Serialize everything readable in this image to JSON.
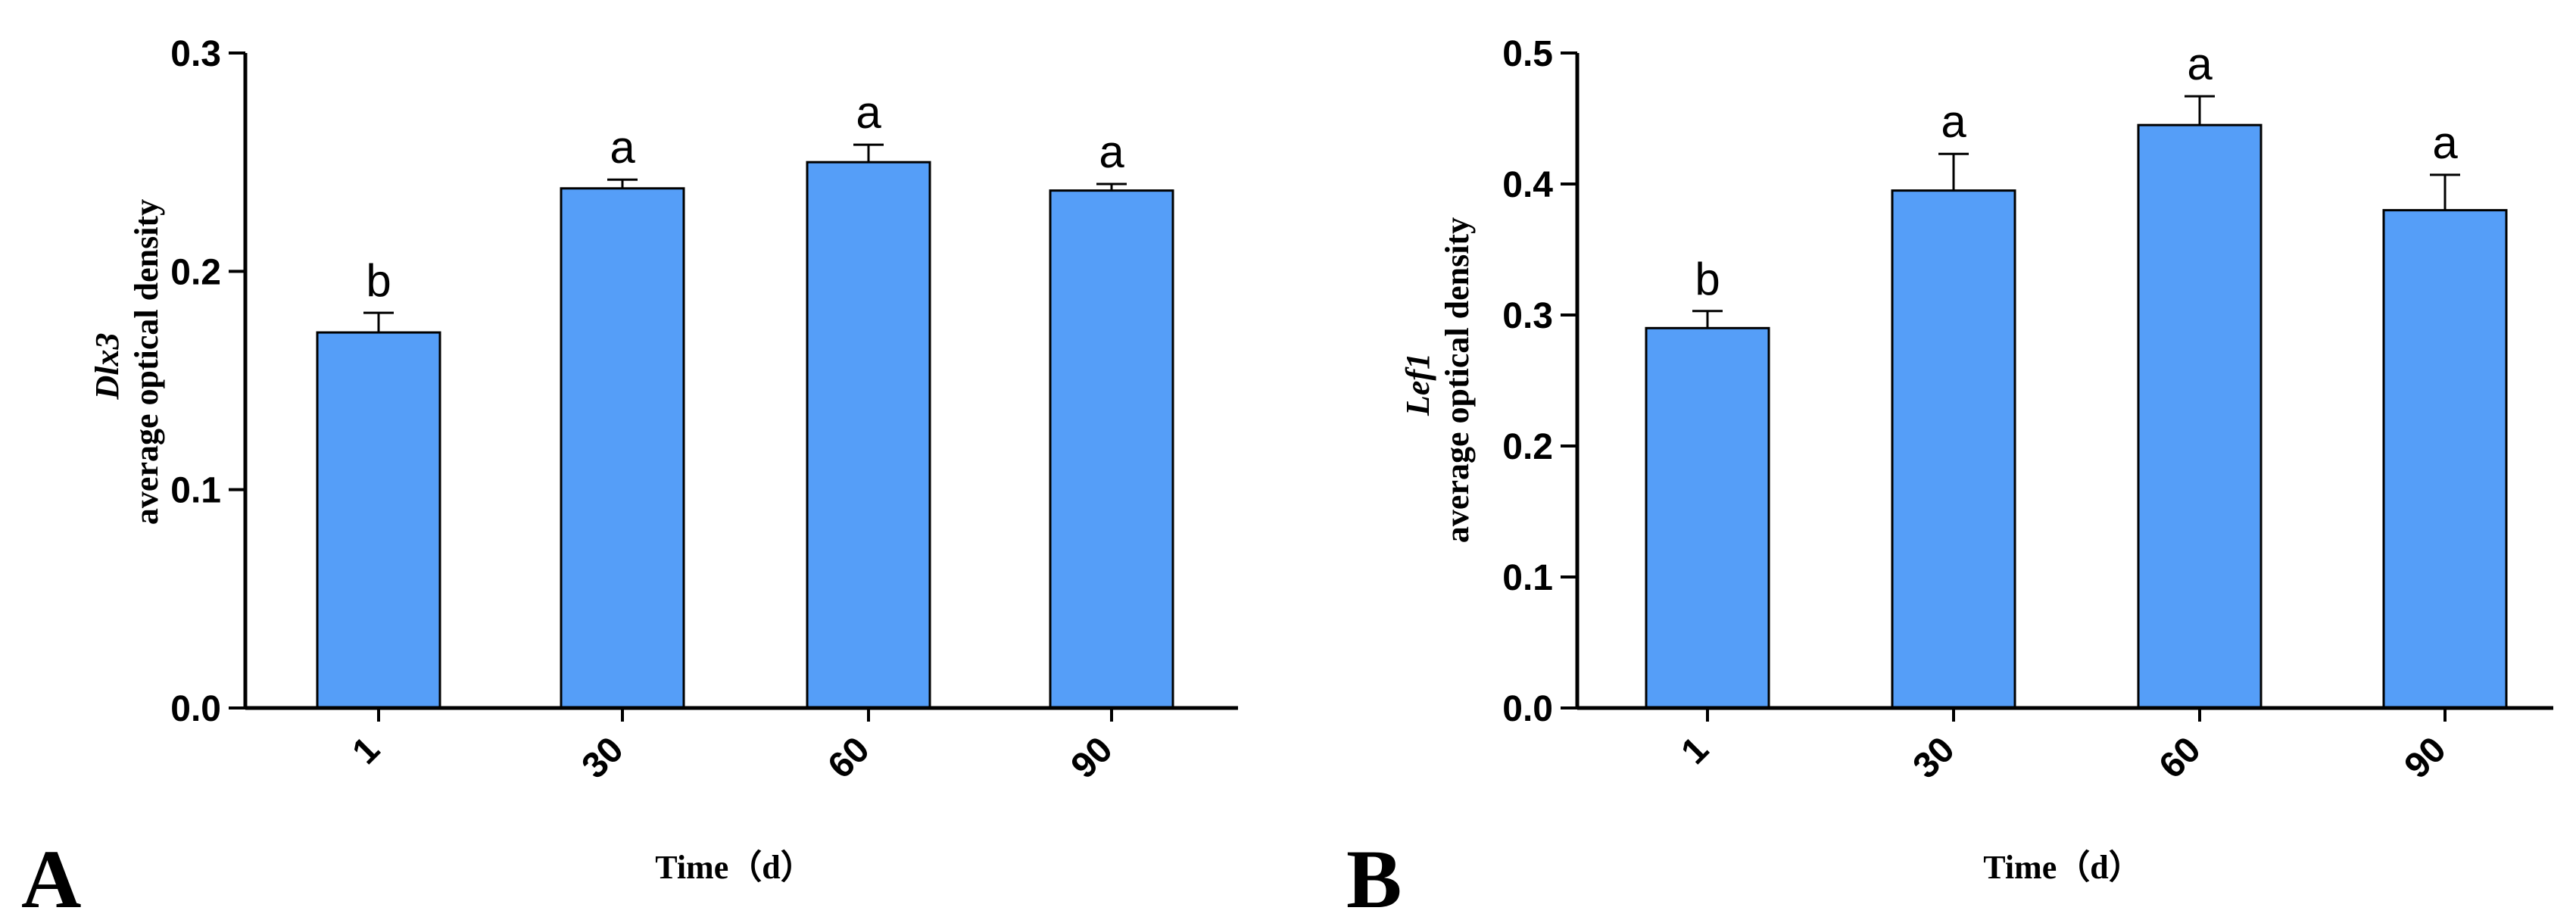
{
  "chart_data": [
    {
      "type": "bar",
      "panel": "A",
      "categories": [
        "1",
        "30",
        "60",
        "90"
      ],
      "values": [
        0.172,
        0.238,
        0.25,
        0.237
      ],
      "errors": [
        0.009,
        0.004,
        0.008,
        0.003
      ],
      "significance": [
        "b",
        "a",
        "a",
        "a"
      ],
      "xlabel": "Time（d）",
      "ylabel_gene": "Dlx3",
      "ylabel": "average optical density",
      "ylim": [
        0,
        0.3
      ],
      "yticks": [
        "0.0",
        "0.1",
        "0.2",
        "0.3"
      ],
      "bar_color": "#559ef8",
      "grid": false
    },
    {
      "type": "bar",
      "panel": "B",
      "categories": [
        "1",
        "30",
        "60",
        "90"
      ],
      "values": [
        0.29,
        0.395,
        0.445,
        0.38
      ],
      "errors": [
        0.013,
        0.028,
        0.022,
        0.027
      ],
      "significance": [
        "b",
        "a",
        "a",
        "a"
      ],
      "xlabel": "Time（d）",
      "ylabel_gene": "Lef1",
      "ylabel": "average optical density",
      "ylim": [
        0,
        0.5
      ],
      "yticks": [
        "0.0",
        "0.1",
        "0.2",
        "0.3",
        "0.4",
        "0.5"
      ],
      "bar_color": "#559ef8",
      "grid": false
    }
  ]
}
